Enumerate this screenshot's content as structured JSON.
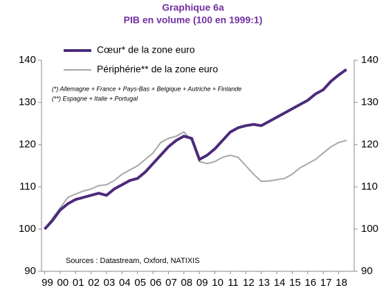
{
  "chart_data": {
    "type": "line",
    "title": "Graphique 6a",
    "subtitle": "PIB en volume (100 en 1999:1)",
    "notes": [
      "(*) Allemagne + France + Pays-Bas + Belgique + Autriche + Finlande",
      "(**) Espagne + Italie + Portugal"
    ],
    "source": "Sources : Datastream, Oxford, NATIXIS",
    "x": [
      1999,
      1999.5,
      2000,
      2000.5,
      2001,
      2001.5,
      2002,
      2002.5,
      2003,
      2003.5,
      2004,
      2004.5,
      2005,
      2005.5,
      2006,
      2006.5,
      2007,
      2007.5,
      2008,
      2008.5,
      2009,
      2009.5,
      2010,
      2010.5,
      2011,
      2011.5,
      2012,
      2012.5,
      2013,
      2013.5,
      2014,
      2014.5,
      2015,
      2015.5,
      2016,
      2016.5,
      2017,
      2017.5,
      2018,
      2018.5
    ],
    "series": [
      {
        "name": "Cœur* de la zone euro",
        "color": "#4b2a7b",
        "values": [
          100,
          102,
          104.5,
          106,
          107,
          107.5,
          108,
          108.5,
          108,
          109.5,
          110.5,
          111.5,
          112,
          113.5,
          115.5,
          117.5,
          119.5,
          121,
          122,
          121.5,
          116.5,
          117.5,
          119,
          121,
          123,
          124,
          124.5,
          124.8,
          124.5,
          125.5,
          126.5,
          127.5,
          128.5,
          129.5,
          130.5,
          132,
          133,
          135,
          136.5,
          137.8
        ]
      },
      {
        "name": "Périphérie** de la zone euro",
        "color": "#a6a6a6",
        "values": [
          100,
          102.5,
          105,
          107.5,
          108.3,
          109,
          109.5,
          110.3,
          110.5,
          111.5,
          113,
          114,
          115,
          116.5,
          118,
          120.5,
          121.5,
          122,
          123,
          121,
          116,
          115.5,
          116,
          117,
          117.5,
          117,
          115,
          113,
          111.3,
          111.4,
          111.7,
          112,
          113,
          114.5,
          115.5,
          116.5,
          118,
          119.5,
          120.5,
          121
        ]
      }
    ],
    "xlim": [
      1998.8,
      2019
    ],
    "xticks": [
      {
        "value": 1999,
        "label": "99"
      },
      {
        "value": 2000,
        "label": "00"
      },
      {
        "value": 2001,
        "label": "01"
      },
      {
        "value": 2002,
        "label": "02"
      },
      {
        "value": 2003,
        "label": "03"
      },
      {
        "value": 2004,
        "label": "04"
      },
      {
        "value": 2005,
        "label": "05"
      },
      {
        "value": 2006,
        "label": "06"
      },
      {
        "value": 2007,
        "label": "07"
      },
      {
        "value": 2008,
        "label": "08"
      },
      {
        "value": 2009,
        "label": "09"
      },
      {
        "value": 2010,
        "label": "10"
      },
      {
        "value": 2011,
        "label": "11"
      },
      {
        "value": 2012,
        "label": "12"
      },
      {
        "value": 2013,
        "label": "13"
      },
      {
        "value": 2014,
        "label": "14"
      },
      {
        "value": 2015,
        "label": "15"
      },
      {
        "value": 2016,
        "label": "16"
      },
      {
        "value": 2017,
        "label": "17"
      },
      {
        "value": 2018,
        "label": "18"
      }
    ],
    "ylim": [
      90,
      140
    ],
    "yticks": [
      90,
      100,
      110,
      120,
      130,
      140
    ],
    "y2lim": [
      90,
      140
    ],
    "y2ticks": [
      90,
      100,
      110,
      120,
      130,
      140
    ],
    "grid": false,
    "legend": "upper left"
  }
}
